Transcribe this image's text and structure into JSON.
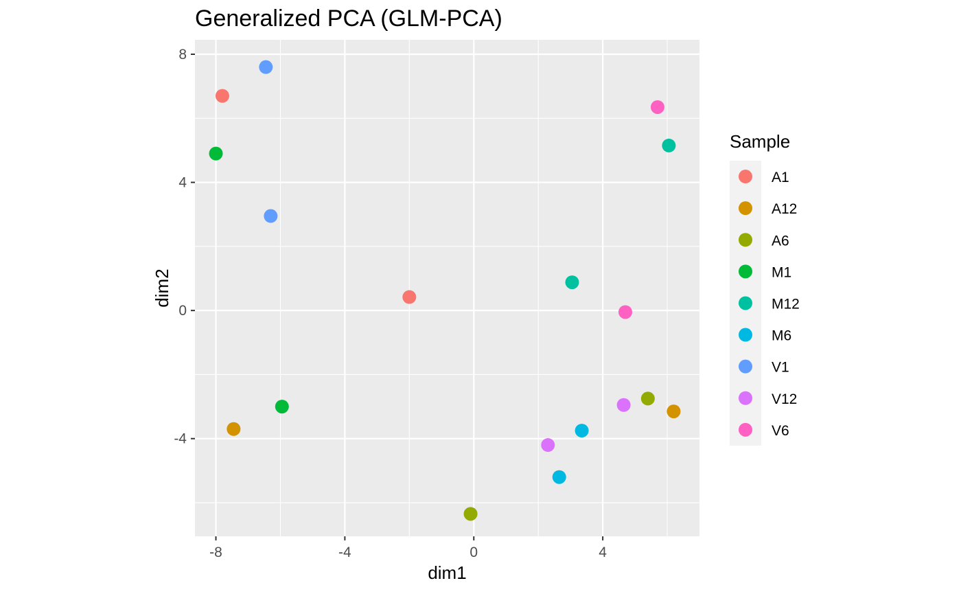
{
  "chart_data": {
    "type": "scatter",
    "title": "Generalized PCA (GLM-PCA)",
    "xlabel": "dim1",
    "ylabel": "dim2",
    "xlim": [
      -8.65,
      7.0
    ],
    "ylim": [
      -7.05,
      8.45
    ],
    "xticks": [
      -8,
      -4,
      0,
      4
    ],
    "yticks": [
      -4,
      0,
      4,
      8
    ],
    "grid": true,
    "panel_background": "#ebebeb",
    "legend": {
      "title": "Sample",
      "position": "right"
    },
    "series": [
      {
        "name": "A1",
        "color": "#F8766D",
        "points": [
          [
            -7.8,
            6.7
          ],
          [
            -2.0,
            0.42
          ]
        ]
      },
      {
        "name": "A12",
        "color": "#D39200",
        "points": [
          [
            -7.45,
            -3.7
          ],
          [
            6.2,
            -3.15
          ]
        ]
      },
      {
        "name": "A6",
        "color": "#93AA00",
        "points": [
          [
            -0.1,
            -6.35
          ],
          [
            5.4,
            -2.75
          ]
        ]
      },
      {
        "name": "M1",
        "color": "#00BA38",
        "points": [
          [
            -8.0,
            4.9
          ],
          [
            -5.95,
            -3.0
          ]
        ]
      },
      {
        "name": "M12",
        "color": "#00C19F",
        "points": [
          [
            6.05,
            5.15
          ],
          [
            3.05,
            0.88
          ]
        ]
      },
      {
        "name": "M6",
        "color": "#00B9E3",
        "points": [
          [
            3.35,
            -3.75
          ],
          [
            2.65,
            -5.2
          ]
        ]
      },
      {
        "name": "V1",
        "color": "#619CFF",
        "points": [
          [
            -6.45,
            7.6
          ],
          [
            -6.3,
            2.95
          ]
        ]
      },
      {
        "name": "V12",
        "color": "#DB72FB",
        "points": [
          [
            4.65,
            -2.95
          ],
          [
            2.3,
            -4.2
          ]
        ]
      },
      {
        "name": "V6",
        "color": "#FF61C3",
        "points": [
          [
            5.7,
            6.35
          ],
          [
            4.7,
            -0.05
          ]
        ]
      }
    ]
  }
}
